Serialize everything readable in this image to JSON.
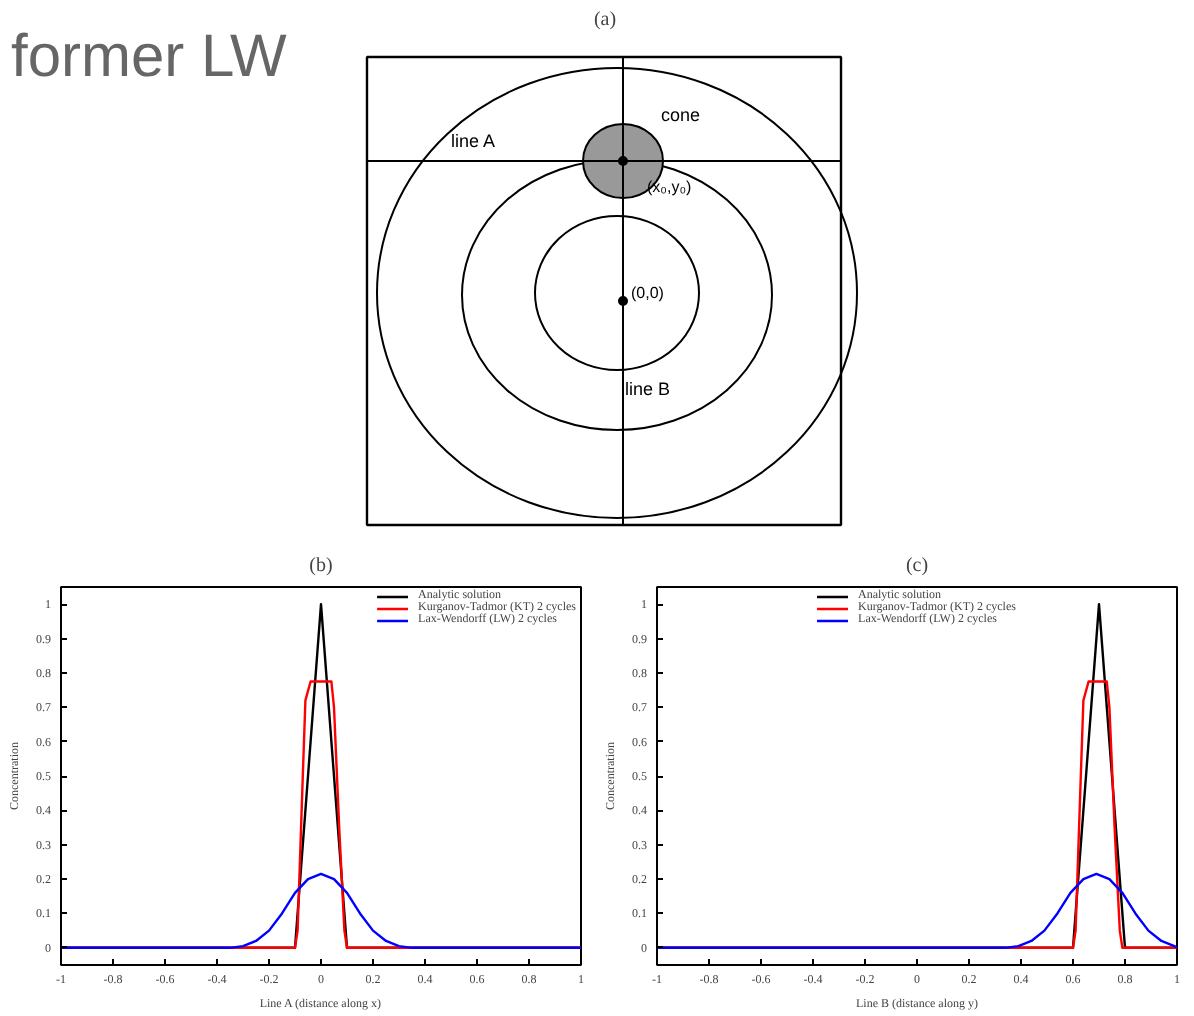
{
  "chart_data": [
    {
      "type": "other",
      "title": "(a)",
      "annotations": [
        "former LW",
        "line A",
        "cone",
        "(x₀,y₀)",
        "(0,0)",
        "line B"
      ]
    },
    {
      "type": "line",
      "title": "(b)",
      "xlabel": "Line A (distance along x)",
      "ylabel": "Concentration",
      "xlim": [
        -1,
        1
      ],
      "ylim": [
        -0.05,
        1.05
      ],
      "xticks": [
        -1,
        -0.8,
        -0.6,
        -0.4,
        -0.2,
        0,
        0.2,
        0.4,
        0.6,
        0.8,
        1
      ],
      "yticks": [
        0,
        0.1,
        0.2,
        0.3,
        0.4,
        0.5,
        0.6,
        0.7,
        0.8,
        0.9,
        1
      ],
      "grid": false,
      "legend": "top right",
      "series": [
        {
          "name": "Analytic solution",
          "color": "#000000",
          "x": [
            -1,
            -0.1,
            0,
            0.1,
            1
          ],
          "values": [
            0,
            0,
            1,
            0,
            0
          ]
        },
        {
          "name": "Kurganov-Tadmor (KT) 2 cycles",
          "color": "#ff0000",
          "x": [
            -1,
            -0.1,
            -0.09,
            -0.07,
            -0.06,
            -0.04,
            0.04,
            0.05,
            0.07,
            0.09,
            0.1,
            1
          ],
          "values": [
            0,
            0,
            0.05,
            0.5,
            0.72,
            0.775,
            0.775,
            0.7,
            0.35,
            0.05,
            0,
            0
          ]
        },
        {
          "name": "Lax-Wendorff (LW) 2 cycles",
          "color": "#0000ff",
          "x": [
            -1,
            -0.35,
            -0.3,
            -0.25,
            -0.2,
            -0.15,
            -0.1,
            -0.05,
            0,
            0.05,
            0.1,
            0.15,
            0.2,
            0.25,
            0.3,
            0.35,
            1
          ],
          "values": [
            0,
            0,
            0.005,
            0.02,
            0.05,
            0.1,
            0.16,
            0.2,
            0.215,
            0.2,
            0.16,
            0.1,
            0.05,
            0.02,
            0.005,
            0,
            0
          ]
        }
      ]
    },
    {
      "type": "line",
      "title": "(c)",
      "xlabel": "Line B (distance along y)",
      "ylabel": "Concentration",
      "xlim": [
        -1,
        1
      ],
      "ylim": [
        -0.05,
        1.05
      ],
      "xticks": [
        -1,
        -0.8,
        -0.6,
        -0.4,
        -0.2,
        0,
        0.2,
        0.4,
        0.6,
        0.8,
        1
      ],
      "yticks": [
        0,
        0.1,
        0.2,
        0.3,
        0.4,
        0.5,
        0.6,
        0.7,
        0.8,
        0.9,
        1
      ],
      "grid": false,
      "legend": "top",
      "series": [
        {
          "name": "Analytic solution",
          "color": "#000000",
          "x": [
            -1,
            0.6,
            0.7,
            0.8,
            1
          ],
          "values": [
            0,
            0,
            1,
            0,
            0
          ]
        },
        {
          "name": "Kurganov-Tadmor (KT) 2 cycles",
          "color": "#ff0000",
          "x": [
            -1,
            0.6,
            0.61,
            0.63,
            0.64,
            0.66,
            0.73,
            0.74,
            0.76,
            0.78,
            0.79,
            1
          ],
          "values": [
            0,
            0,
            0.05,
            0.5,
            0.72,
            0.775,
            0.775,
            0.7,
            0.35,
            0.05,
            0,
            0
          ]
        },
        {
          "name": "Lax-Wendorff (LW) 2 cycles",
          "color": "#0000ff",
          "x": [
            -1,
            0.34,
            0.39,
            0.44,
            0.49,
            0.54,
            0.59,
            0.64,
            0.69,
            0.74,
            0.79,
            0.84,
            0.89,
            0.94,
            0.99,
            1
          ],
          "values": [
            0,
            0,
            0.005,
            0.02,
            0.05,
            0.1,
            0.16,
            0.2,
            0.215,
            0.2,
            0.16,
            0.1,
            0.05,
            0.02,
            0.005,
            0
          ]
        }
      ]
    }
  ]
}
